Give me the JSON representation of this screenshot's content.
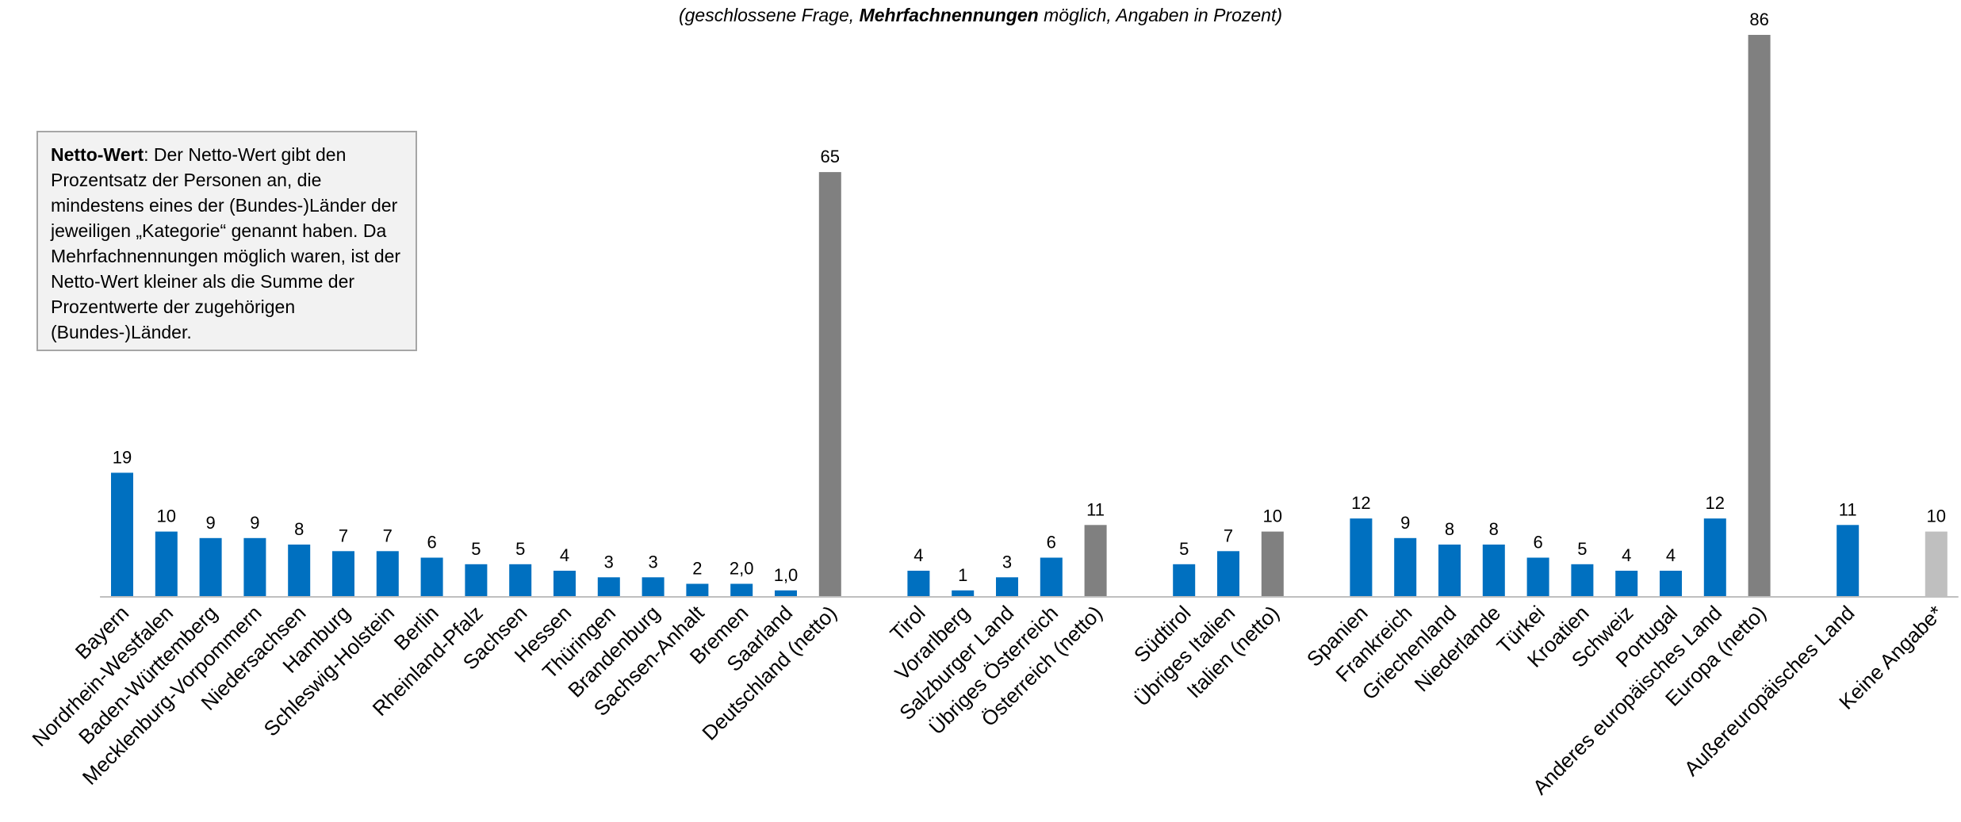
{
  "subtitle": {
    "prefix": "(geschlossene Frage, ",
    "bold": "Mehrfachnennungen",
    "suffix": " möglich, Angaben in Prozent)"
  },
  "note": {
    "bold": "Netto-Wert",
    "text": ": Der Netto-Wert gibt den Prozentsatz der Personen an, die mindestens eines der (Bundes-)Länder der jeweiligen „Kategorie“ genannt haben. Da Mehrfachnennungen möglich waren, ist der Netto-Wert kleiner als die Summe der Prozentwerte der zugehörigen (Bundes-)Länder."
  },
  "colors": {
    "region": "#0070c0",
    "netto": "#808080",
    "no_answer": "#bfbfbf",
    "axis": "#bfbfbf"
  },
  "chart_data": {
    "type": "bar",
    "ylim": [
      0,
      86
    ],
    "grid": false,
    "categories": [
      "Bayern",
      "Nordrhein-Westfalen",
      "Baden-Württemberg",
      "Mecklenburg-Vorpommern",
      "Niedersachsen",
      "Hamburg",
      "Schleswig-Holstein",
      "Berlin",
      "Rheinland-Pfalz",
      "Sachsen",
      "Hessen",
      "Thüringen",
      "Brandenburg",
      "Sachsen-Anhalt",
      "Bremen",
      "Saarland",
      "Deutschland (netto)",
      "Tirol",
      "Vorarlberg",
      "Salzburger Land",
      "Übriges Österreich",
      "Österreich (netto)",
      "Südtirol",
      "Übriges Italien",
      "Italien (netto)",
      "Spanien",
      "Frankreich",
      "Griechenland",
      "Niederlande",
      "Türkei",
      "Kroatien",
      "Schweiz",
      "Portugal",
      "Anderes europäisches Land",
      "Europa (netto)",
      "Außereuropäisches Land",
      "Keine Angabe*"
    ],
    "values": [
      19,
      10,
      9,
      9,
      8,
      7,
      7,
      6,
      5,
      5,
      4,
      3,
      3,
      2,
      2.0,
      1.0,
      65,
      4,
      1,
      3,
      6,
      11,
      5,
      7,
      10,
      12,
      9,
      8,
      8,
      6,
      5,
      4,
      4,
      12,
      86,
      11,
      10
    ],
    "labels": [
      "19",
      "10",
      "9",
      "9",
      "8",
      "7",
      "7",
      "6",
      "5",
      "5",
      "4",
      "3",
      "3",
      "2",
      "2,0",
      "1,0",
      "65",
      "4",
      "1",
      "3",
      "6",
      "11",
      "5",
      "7",
      "10",
      "12",
      "9",
      "8",
      "8",
      "6",
      "5",
      "4",
      "4",
      "12",
      "86",
      "11",
      "10"
    ],
    "kind": [
      "region",
      "region",
      "region",
      "region",
      "region",
      "region",
      "region",
      "region",
      "region",
      "region",
      "region",
      "region",
      "region",
      "region",
      "region",
      "region",
      "netto",
      "region",
      "region",
      "region",
      "region",
      "netto",
      "region",
      "region",
      "netto",
      "region",
      "region",
      "region",
      "region",
      "region",
      "region",
      "region",
      "region",
      "region",
      "netto",
      "region",
      "no_answer"
    ]
  }
}
